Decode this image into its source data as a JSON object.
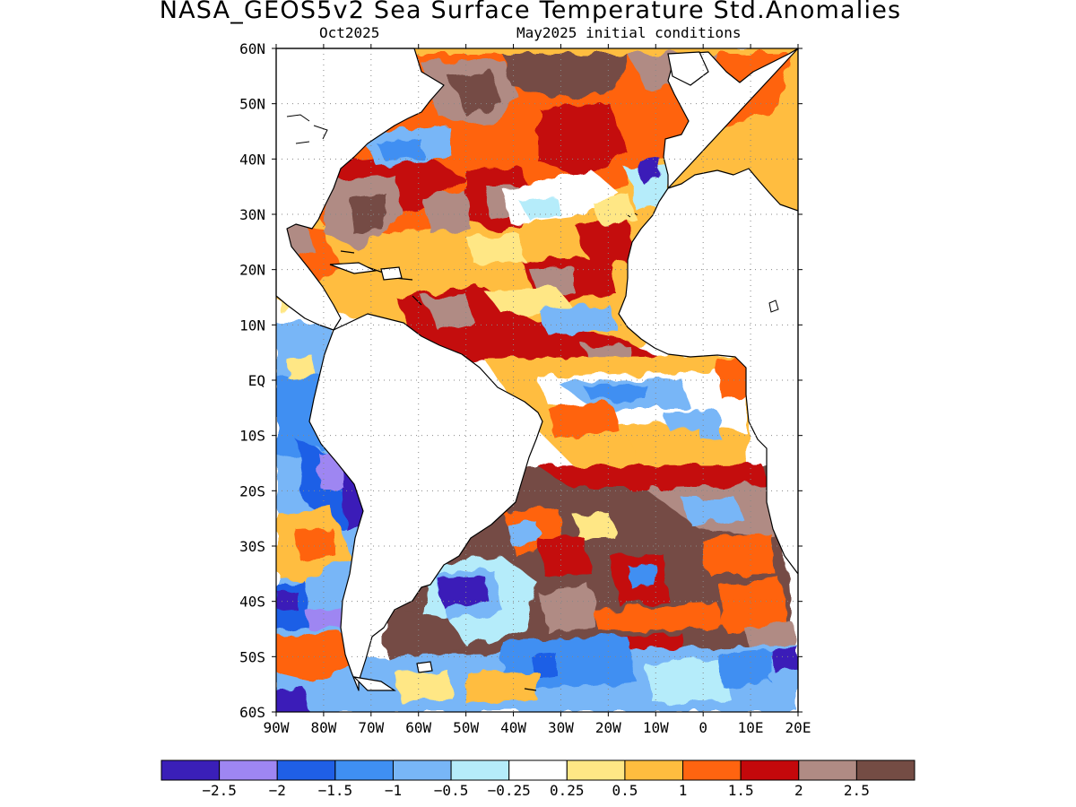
{
  "title": "NASA_GEOS5v2 Sea Surface Temperature Std.Anomalies",
  "subtitle_left": "Oct2025",
  "subtitle_right": "May2025 initial conditions",
  "lat_labels": [
    "60N",
    "50N",
    "40N",
    "30N",
    "20N",
    "10N",
    "EQ",
    "10S",
    "20S",
    "30S",
    "40S",
    "50S",
    "60S"
  ],
  "lon_labels": [
    "90W",
    "80W",
    "70W",
    "60W",
    "50W",
    "40W",
    "30W",
    "20W",
    "10W",
    "0",
    "10E",
    "20E"
  ],
  "colorbar": {
    "colors": [
      "#3a1fb8",
      "#9e86f2",
      "#1f5fe6",
      "#3f8ff2",
      "#78b6f7",
      "#b5ecfa",
      "#ffffff",
      "#ffe785",
      "#ffbd3f",
      "#ff6410",
      "#c4080b",
      "#b08b84",
      "#744c44"
    ],
    "tick_labels": [
      "-2.5",
      "-2",
      "-1.5",
      "-1",
      "-0.5",
      "-0.25",
      "0.25",
      "0.5",
      "1",
      "1.5",
      "2",
      "2.5"
    ]
  },
  "map_region": {
    "lon_range": [
      -90,
      20
    ],
    "lat_range": [
      -60,
      60
    ]
  }
}
